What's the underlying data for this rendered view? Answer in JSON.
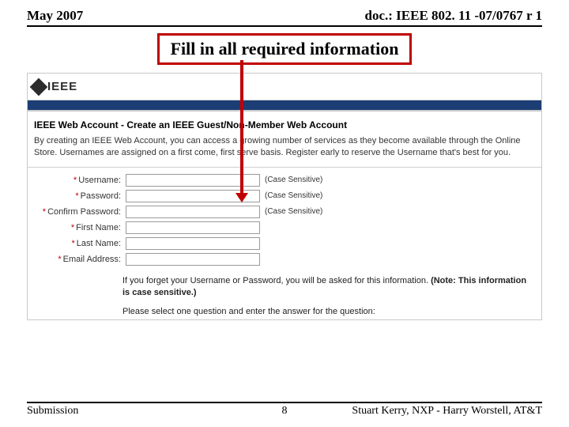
{
  "header": {
    "date": "May 2007",
    "doc": "doc.: IEEE 802. 11 -07/0767 r 1"
  },
  "callout": {
    "text": "Fill in all required information",
    "border_color": "#c00000",
    "arrow_color": "#c00000"
  },
  "ieee": {
    "logo_text": "IEEE",
    "blue_strip_color": "#1c3e74"
  },
  "section": {
    "title": "IEEE Web Account - Create an IEEE Guest/Non-Member Web Account",
    "blurb": "By creating an IEEE Web Account, you can access a growing number of services as they become available through the Online Store. Usernames are assigned on a first come, first serve basis. Register early to reserve the Username that's best for you."
  },
  "form": {
    "fields": [
      {
        "label": "Username:",
        "required": true,
        "hint": "(Case Sensitive)"
      },
      {
        "label": "Password:",
        "required": true,
        "hint": "(Case Sensitive)"
      },
      {
        "label": "Confirm Password:",
        "required": true,
        "hint": "(Case Sensitive)"
      },
      {
        "label": "First Name:",
        "required": true,
        "hint": ""
      },
      {
        "label": "Last Name:",
        "required": true,
        "hint": ""
      },
      {
        "label": "Email Address:",
        "required": true,
        "hint": ""
      }
    ]
  },
  "notes": {
    "line1_pre": "If you forget your Username or Password, you will be asked for this information. ",
    "line1_bold": "(Note: This information is case sensitive.)",
    "line2": "Please select one question and enter the answer for the question:"
  },
  "footer": {
    "left": "Submission",
    "page": "8",
    "right": "Stuart Kerry, NXP - Harry Worstell, AT&T"
  },
  "colors": {
    "rule": "#000000",
    "required": "#c00000",
    "input_border": "#9a9a9a"
  }
}
